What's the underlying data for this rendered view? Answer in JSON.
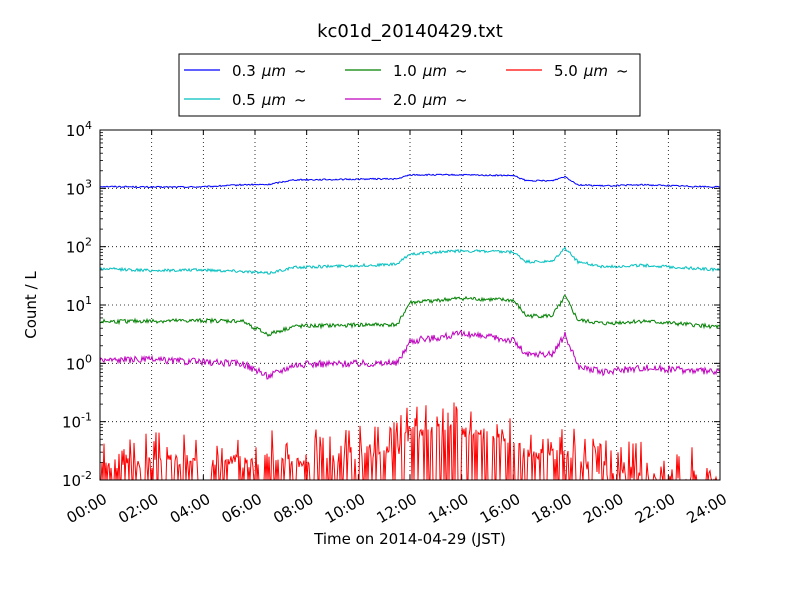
{
  "chart_data": {
    "type": "line",
    "title": "kc01d_20140429.txt",
    "xlabel": "Time on 2014-04-29 (JST)",
    "ylabel": "Count / L",
    "xscale": "time",
    "yscale": "log",
    "xlim": [
      "2014-04-29 00:00",
      "2014-04-30 00:00"
    ],
    "ylim": [
      0.01,
      10000
    ],
    "grid": true,
    "legend_placement": "top-center",
    "x_tick_labels": [
      "00:00",
      "02:00",
      "04:00",
      "06:00",
      "08:00",
      "10:00",
      "12:00",
      "14:00",
      "16:00",
      "18:00",
      "20:00",
      "22:00",
      "24:00"
    ],
    "y_ticks": [
      {
        "base": "10",
        "exp": "-2"
      },
      {
        "base": "10",
        "exp": "-1"
      },
      {
        "base": "10",
        "exp": "0"
      },
      {
        "base": "10",
        "exp": "1"
      },
      {
        "base": "10",
        "exp": "2"
      },
      {
        "base": "10",
        "exp": "3"
      },
      {
        "base": "10",
        "exp": "4"
      }
    ],
    "x_hours": [
      0,
      2,
      4,
      5.5,
      6.5,
      7.5,
      9.5,
      10.5,
      11.5,
      12,
      14,
      16,
      16.5,
      17.5,
      18,
      18.5,
      19.5,
      21,
      24
    ],
    "series": [
      {
        "name": "0.3 μm ~",
        "label": "0.3",
        "color": "#0000ff",
        "values": [
          1080,
          1050,
          1060,
          1150,
          1160,
          1400,
          1420,
          1450,
          1450,
          1700,
          1700,
          1650,
          1350,
          1350,
          1600,
          1150,
          1100,
          1150,
          1050
        ]
      },
      {
        "name": "0.5 μm ~",
        "label": "0.5",
        "color": "#00bfbf",
        "values": [
          42,
          39,
          40,
          38,
          35,
          44,
          47,
          48,
          50,
          75,
          85,
          80,
          55,
          55,
          95,
          55,
          45,
          48,
          40
        ]
      },
      {
        "name": "1.0 μm ~",
        "label": "1.0",
        "color": "#008000",
        "values": [
          5.2,
          5.3,
          5.4,
          5.3,
          3.1,
          4.3,
          4.5,
          4.6,
          4.6,
          11,
          13,
          12,
          6.5,
          6.5,
          14,
          5.5,
          4.8,
          5.3,
          4.2
        ]
      },
      {
        "name": "2.0 μm ~",
        "label": "2.0",
        "color": "#bf00bf",
        "values": [
          1.15,
          1.15,
          1.05,
          1.0,
          0.6,
          0.95,
          1.0,
          1.0,
          1.0,
          2.4,
          3.2,
          2.5,
          1.4,
          1.4,
          3.1,
          0.9,
          0.7,
          0.85,
          0.7
        ]
      },
      {
        "name": "5.0 μm ~",
        "label": "5.0",
        "color": "#ff0000",
        "values": [
          0.02,
          0.02,
          0.02,
          0.02,
          0.02,
          0.02,
          0.025,
          0.03,
          0.03,
          0.06,
          0.07,
          0.04,
          0.025,
          0.025,
          0.03,
          0.02,
          0.015,
          0.013,
          0.012
        ]
      }
    ],
    "legend_unit_text": "μm",
    "legend_tilde": "~"
  }
}
